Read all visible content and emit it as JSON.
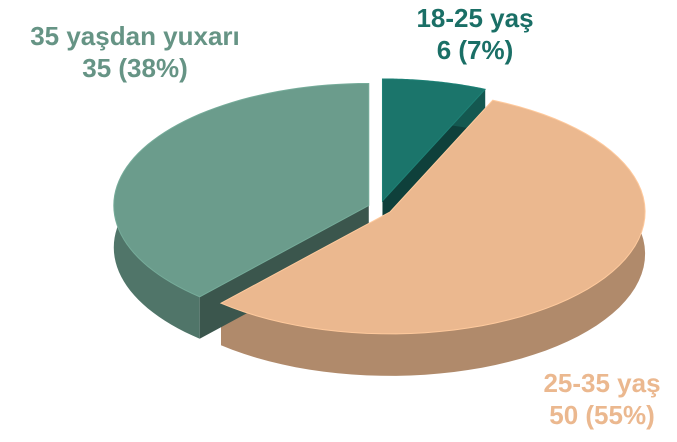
{
  "chart_data": {
    "type": "pie",
    "categories": [
      "18-25 yaş",
      "25-35 yaş",
      "35 yaşdan yuxarı"
    ],
    "values": [
      6,
      50,
      35
    ],
    "value_labels": [
      "6 (7%)",
      "50 (55%)",
      "35 (38%)"
    ],
    "colors": [
      "#1b756b",
      "#ebb88f",
      "#6b9c8c"
    ]
  }
}
